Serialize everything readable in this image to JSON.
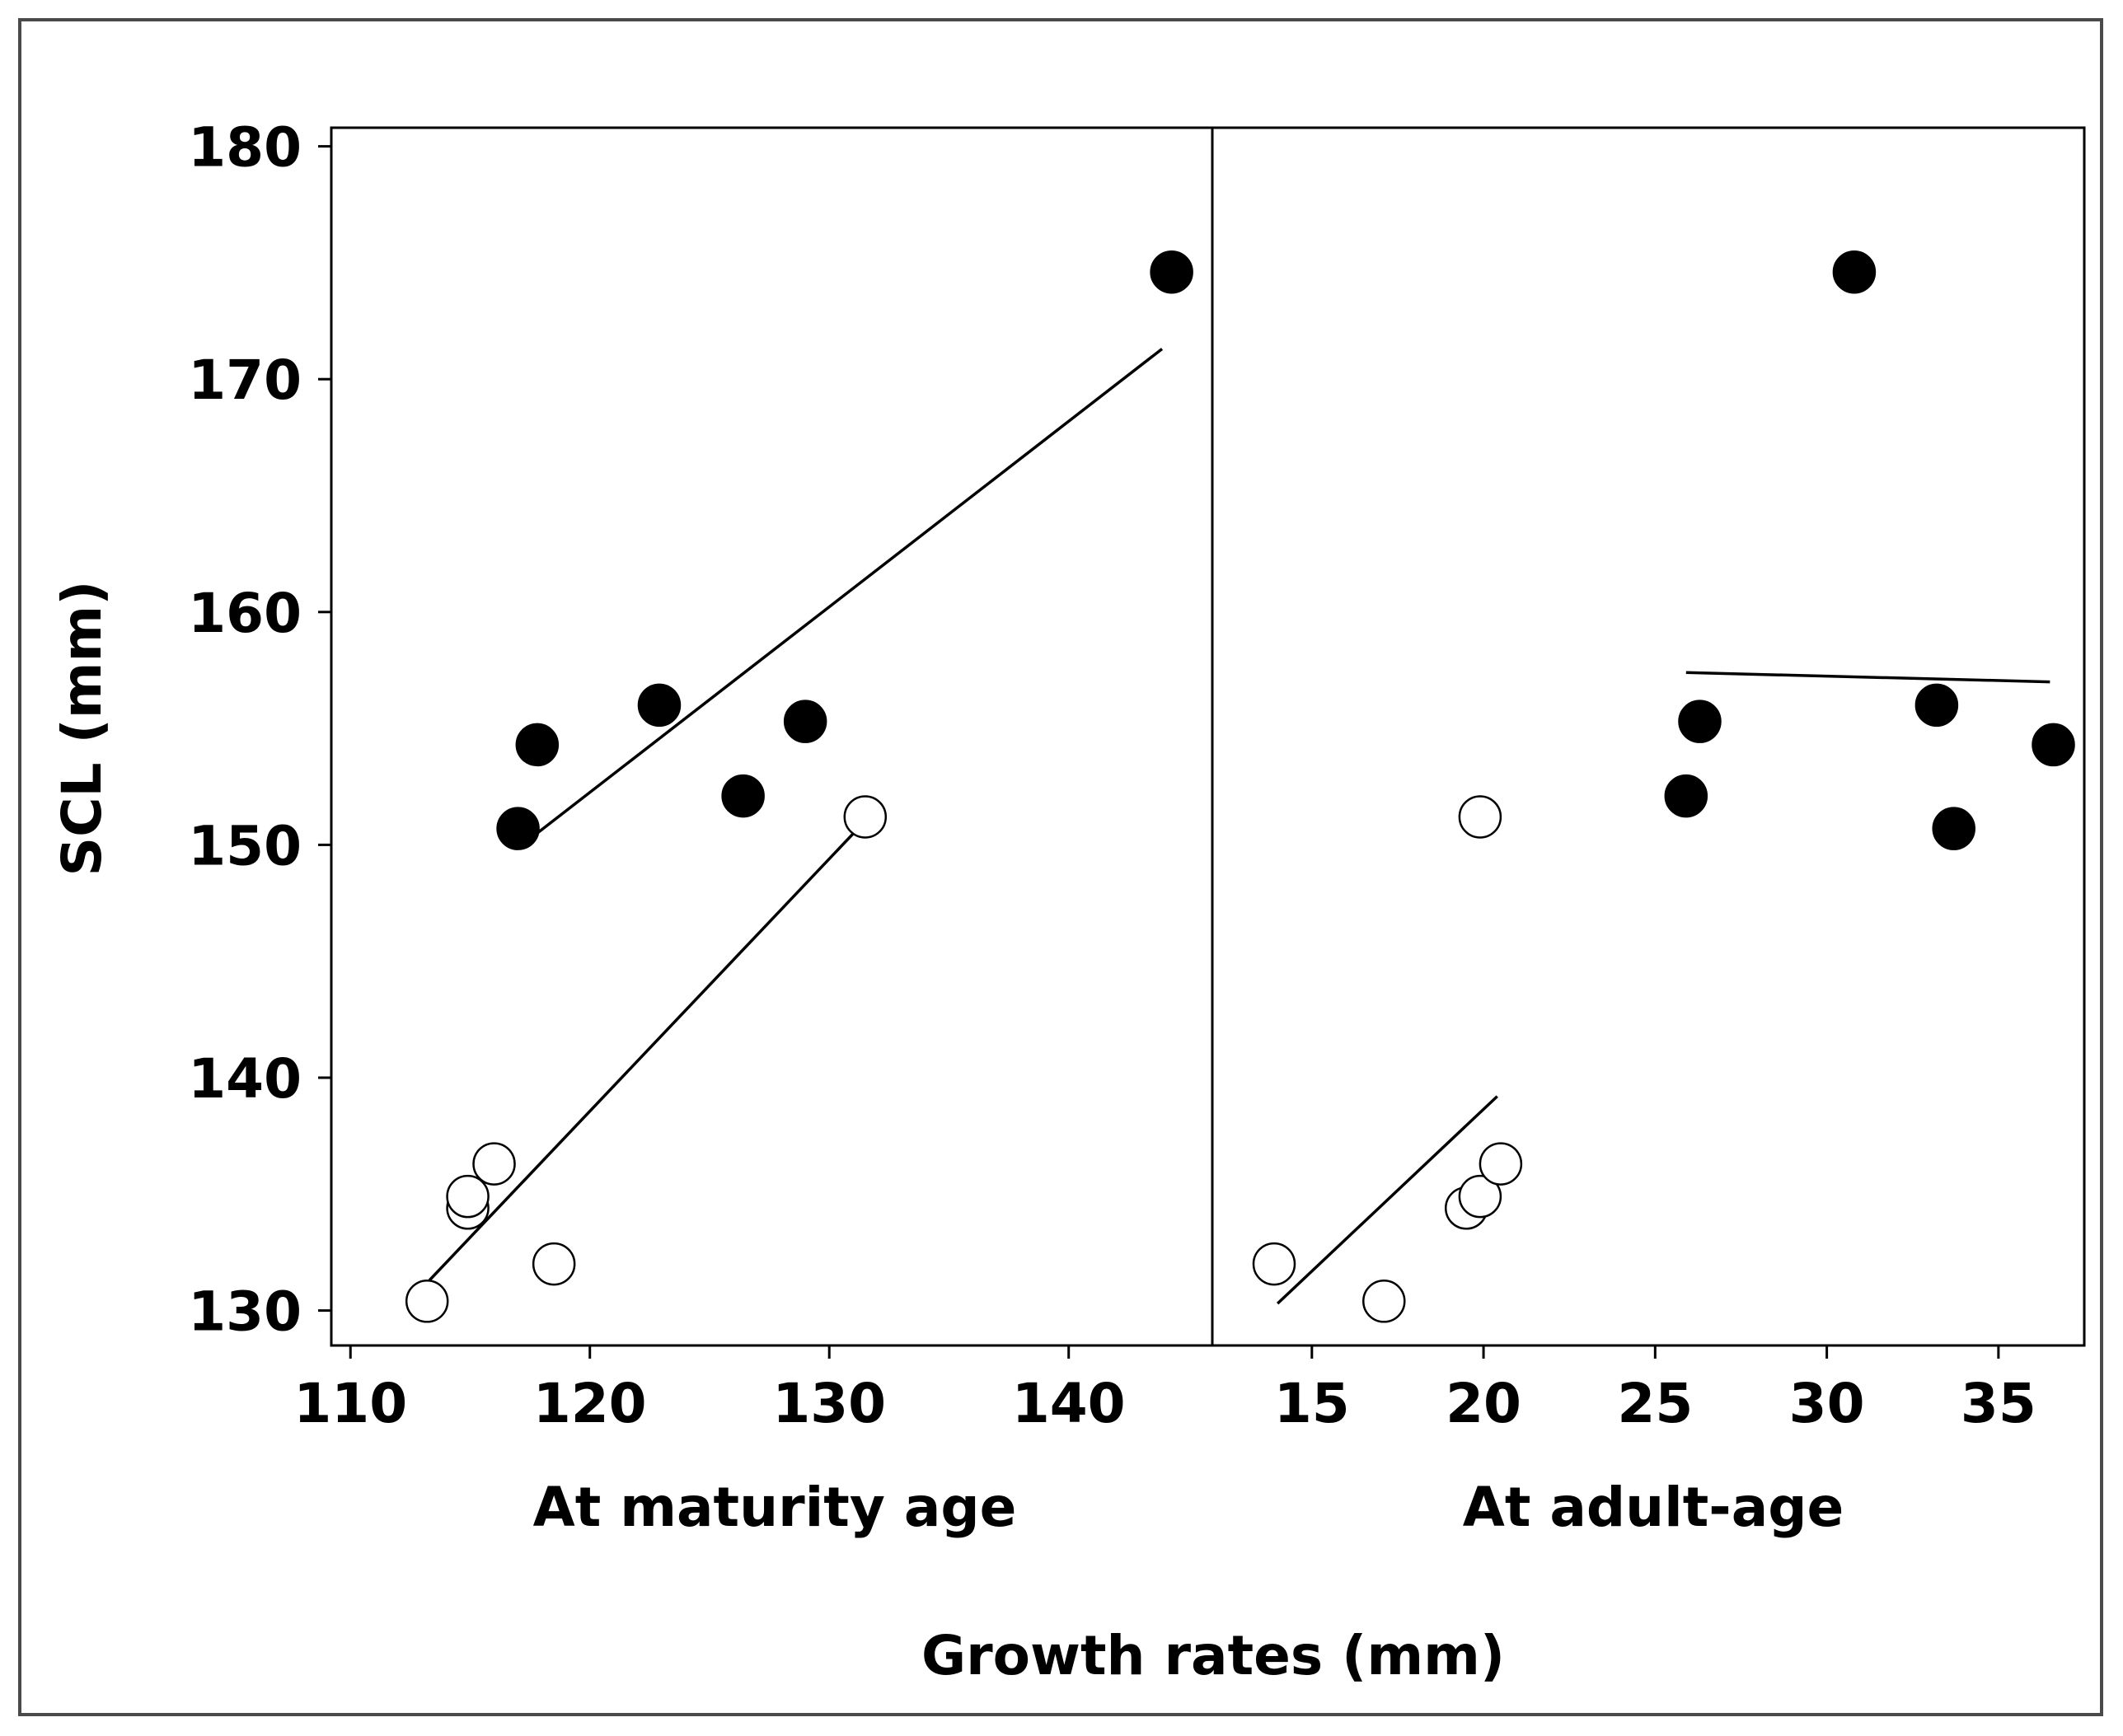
{
  "chart_data": {
    "type": "scatter",
    "title": "",
    "ylabel": "SCL (mm)",
    "xlabel": "Growth rates (mm)",
    "ylim": [
      128.5,
      180.8
    ],
    "yticks": [
      130,
      140,
      150,
      160,
      170,
      180
    ],
    "legend": "none",
    "panels": [
      {
        "label": "At maturity age",
        "xlim": [
          109.2,
          146.0
        ],
        "xticks": [
          110,
          120,
          130,
          140
        ],
        "series": [
          {
            "name": "filled",
            "marker": "filled-circle",
            "points": [
              [
                117.0,
                150.7
              ],
              [
                117.8,
                154.3
              ],
              [
                122.9,
                156.0
              ],
              [
                126.4,
                152.1
              ],
              [
                129.0,
                155.3
              ],
              [
                144.3,
                174.6
              ]
            ],
            "fit": [
              [
                117.8,
                150.5
              ],
              [
                143.9,
                171.3
              ]
            ]
          },
          {
            "name": "open",
            "marker": "open-circle",
            "points": [
              [
                113.2,
                130.4
              ],
              [
                114.9,
                134.4
              ],
              [
                114.9,
                134.9
              ],
              [
                116.0,
                136.3
              ],
              [
                118.5,
                132.0
              ],
              [
                131.5,
                151.2
              ]
            ],
            "fit": [
              [
                113.3,
                131.3
              ],
              [
                131.2,
                150.7
              ]
            ]
          }
        ]
      },
      {
        "label": "At adult-age",
        "xlim": [
          12.1,
          37.5
        ],
        "xticks": [
          15,
          20,
          25,
          30,
          35
        ],
        "series": [
          {
            "name": "filled",
            "marker": "filled-circle",
            "points": [
              [
                25.9,
                152.1
              ],
              [
                26.3,
                155.3
              ],
              [
                30.8,
                174.6
              ],
              [
                33.2,
                156.0
              ],
              [
                33.7,
                150.7
              ],
              [
                36.6,
                154.3
              ]
            ],
            "fit": [
              [
                25.9,
                157.4
              ],
              [
                36.5,
                157.0
              ]
            ]
          },
          {
            "name": "open",
            "marker": "open-circle",
            "points": [
              [
                13.9,
                132.0
              ],
              [
                17.1,
                130.4
              ],
              [
                19.5,
                134.4
              ],
              [
                19.9,
                134.9
              ],
              [
                19.9,
                151.2
              ],
              [
                20.5,
                136.3
              ]
            ],
            "fit": [
              [
                14.0,
                130.3
              ],
              [
                20.4,
                139.2
              ]
            ]
          }
        ]
      }
    ]
  }
}
